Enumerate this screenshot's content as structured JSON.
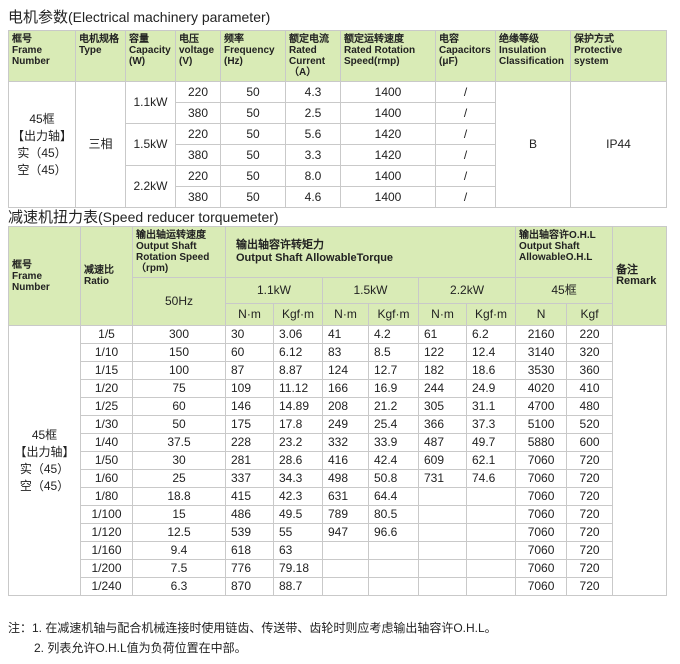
{
  "section1": {
    "title_cn": "电机参数",
    "title_en": "(Electrical machinery parameter)",
    "headers": [
      "框号\nFrame\nNumber",
      "电机规格\nType",
      "容量\nCapacity\n(W)",
      "电压\nvoltage\n(V)",
      "频率\nFrequency\n(Hz)",
      "额定电流\nRated\nCurrent\n（A）",
      "额定运转速度\nRated Rotation\nSpeed(rmp)",
      "电容\nCapacitors\n(μF)",
      "绝缘等级\nInsulation\nClassification",
      "保护方式\nProtective\nsystem"
    ],
    "frame": "45框\n【出力轴】\n实（45）\n空（45）",
    "type": "三相",
    "insulation": "B",
    "protection": "IP44",
    "groups": [
      {
        "capacity": "1.1kW",
        "rows": [
          [
            "220",
            "50",
            "4.3",
            "1400",
            "/"
          ],
          [
            "380",
            "50",
            "2.5",
            "1400",
            "/"
          ]
        ]
      },
      {
        "capacity": "1.5kW",
        "rows": [
          [
            "220",
            "50",
            "5.6",
            "1420",
            "/"
          ],
          [
            "380",
            "50",
            "3.3",
            "1420",
            "/"
          ]
        ]
      },
      {
        "capacity": "2.2kW",
        "rows": [
          [
            "220",
            "50",
            "8.0",
            "1400",
            "/"
          ],
          [
            "380",
            "50",
            "4.6",
            "1400",
            "/"
          ]
        ]
      }
    ]
  },
  "section2": {
    "title_cn": "减速机扭力表",
    "title_en": "(Speed reducer torquemeter)",
    "h_frame": "框号\nFrame\nNumber",
    "h_ratio": "减速比\nRatio",
    "h_speed": "输出轴运转速度\nOutput Shaft\nRotation Speed\n（rpm)",
    "h_torque": "输出轴容许转矩力\nOutput Shaft AllowableTorque",
    "h_ohl": "输出轴容许O.H.L\nOutput Shaft\nAllowableO.H.L",
    "h_remark": "备注\nRemark",
    "freq": "50Hz",
    "powers": [
      "1.1kW",
      "1.5kW",
      "2.2kW"
    ],
    "ohl_frame": "45框",
    "units": [
      "N·m",
      "Kgf·m",
      "N·m",
      "Kgf·m",
      "N·m",
      "Kgf·m",
      "N",
      "Kgf"
    ],
    "frame": "45框\n【出力轴】\n实（45）\n空（45）",
    "rows": [
      [
        "1/5",
        "300",
        "30",
        "3.06",
        "41",
        "4.2",
        "61",
        "6.2",
        "2160",
        "220"
      ],
      [
        "1/10",
        "150",
        "60",
        "6.12",
        "83",
        "8.5",
        "122",
        "12.4",
        "3140",
        "320"
      ],
      [
        "1/15",
        "100",
        "87",
        "8.87",
        "124",
        "12.7",
        "182",
        "18.6",
        "3530",
        "360"
      ],
      [
        "1/20",
        "75",
        "109",
        "11.12",
        "166",
        "16.9",
        "244",
        "24.9",
        "4020",
        "410"
      ],
      [
        "1/25",
        "60",
        "146",
        "14.89",
        "208",
        "21.2",
        "305",
        "31.1",
        "4700",
        "480"
      ],
      [
        "1/30",
        "50",
        "175",
        "17.8",
        "249",
        "25.4",
        "366",
        "37.3",
        "5100",
        "520"
      ],
      [
        "1/40",
        "37.5",
        "228",
        "23.2",
        "332",
        "33.9",
        "487",
        "49.7",
        "5880",
        "600"
      ],
      [
        "1/50",
        "30",
        "281",
        "28.6",
        "416",
        "42.4",
        "609",
        "62.1",
        "7060",
        "720"
      ],
      [
        "1/60",
        "25",
        "337",
        "34.3",
        "498",
        "50.8",
        "731",
        "74.6",
        "7060",
        "720"
      ],
      [
        "1/80",
        "18.8",
        "415",
        "42.3",
        "631",
        "64.4",
        "",
        "",
        "7060",
        "720"
      ],
      [
        "1/100",
        "15",
        "486",
        "49.5",
        "789",
        "80.5",
        "",
        "",
        "7060",
        "720"
      ],
      [
        "1/120",
        "12.5",
        "539",
        "55",
        "947",
        "96.6",
        "",
        "",
        "7060",
        "720"
      ],
      [
        "1/160",
        "9.4",
        "618",
        "63",
        "",
        "",
        "",
        "",
        "7060",
        "720"
      ],
      [
        "1/200",
        "7.5",
        "776",
        "79.18",
        "",
        "",
        "",
        "",
        "7060",
        "720"
      ],
      [
        "1/240",
        "6.3",
        "870",
        "88.7",
        "",
        "",
        "",
        "",
        "7060",
        "720"
      ]
    ]
  },
  "notes": [
    "注：1. 在减速机轴与配合机械连接时使用链齿、传送带、齿轮时则应考虑输出轴容许O.H.L。",
    "2. 列表允许O.H.L值为负荷位置在中部。"
  ]
}
